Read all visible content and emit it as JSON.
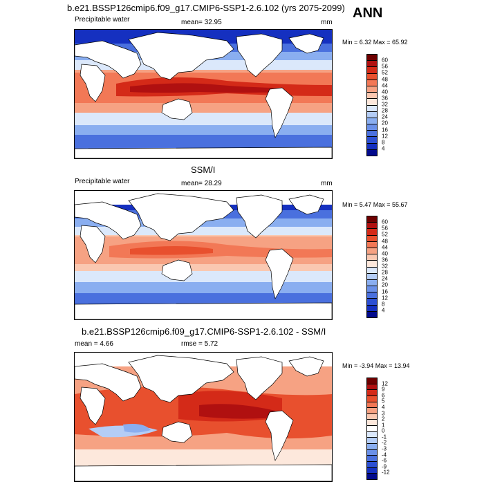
{
  "season": "ANN",
  "panels": [
    {
      "title": "b.e21.BSSP126cmip6.f09_g17.CMIP6-SSP1-2.6.102 (yrs 2075-2099)",
      "variable": "Precipitable water",
      "stat": "mean=  32.95",
      "units": "mm",
      "minmax": "Min =   6.32 Max =  65.92",
      "labels": [
        "60",
        "56",
        "52",
        "48",
        "44",
        "40",
        "36",
        "32",
        "28",
        "24",
        "20",
        "16",
        "12",
        "8",
        "4"
      ]
    },
    {
      "title": "SSM/I",
      "variable": "Precipitable water",
      "stat": "mean=  28.29",
      "units": "mm",
      "minmax": "Min =   5.47 Max =  55.67",
      "labels": [
        "60",
        "56",
        "52",
        "48",
        "44",
        "40",
        "36",
        "32",
        "28",
        "24",
        "20",
        "16",
        "12",
        "8",
        "4"
      ]
    },
    {
      "title": "b.e21.BSSP126cmip6.f09_g17.CMIP6-SSP1-2.6.102 - SSM/I",
      "mean": "mean =   4.66",
      "rmse": "rmse =   5.72",
      "minmax": "Min =  -3.94 Max =  13.94",
      "labels": [
        "12",
        "9",
        "6",
        "5",
        "4",
        "3",
        "2",
        "1",
        "0",
        "-1",
        "-2",
        "-3",
        "-4",
        "-6",
        "-9",
        "-12"
      ]
    }
  ],
  "colors": {
    "abs_scale": [
      "#6e0000",
      "#b01010",
      "#d42a18",
      "#e8502e",
      "#f27856",
      "#f6a283",
      "#fac8b1",
      "#fde8dc",
      "#dbe8fb",
      "#b4cdf6",
      "#8aaef0",
      "#6a90e8",
      "#4a70de",
      "#2c4fd2",
      "#1530c0",
      "#020a8c"
    ],
    "diff_scale": [
      "#6e0000",
      "#b01010",
      "#d42a18",
      "#e8502e",
      "#f27856",
      "#f6a283",
      "#fac8b1",
      "#fde8dc",
      "#ffffff",
      "#dbe8fb",
      "#b4cdf6",
      "#8aaef0",
      "#6a90e8",
      "#4a70de",
      "#2c4fd2",
      "#1530c0",
      "#020a8c"
    ]
  }
}
